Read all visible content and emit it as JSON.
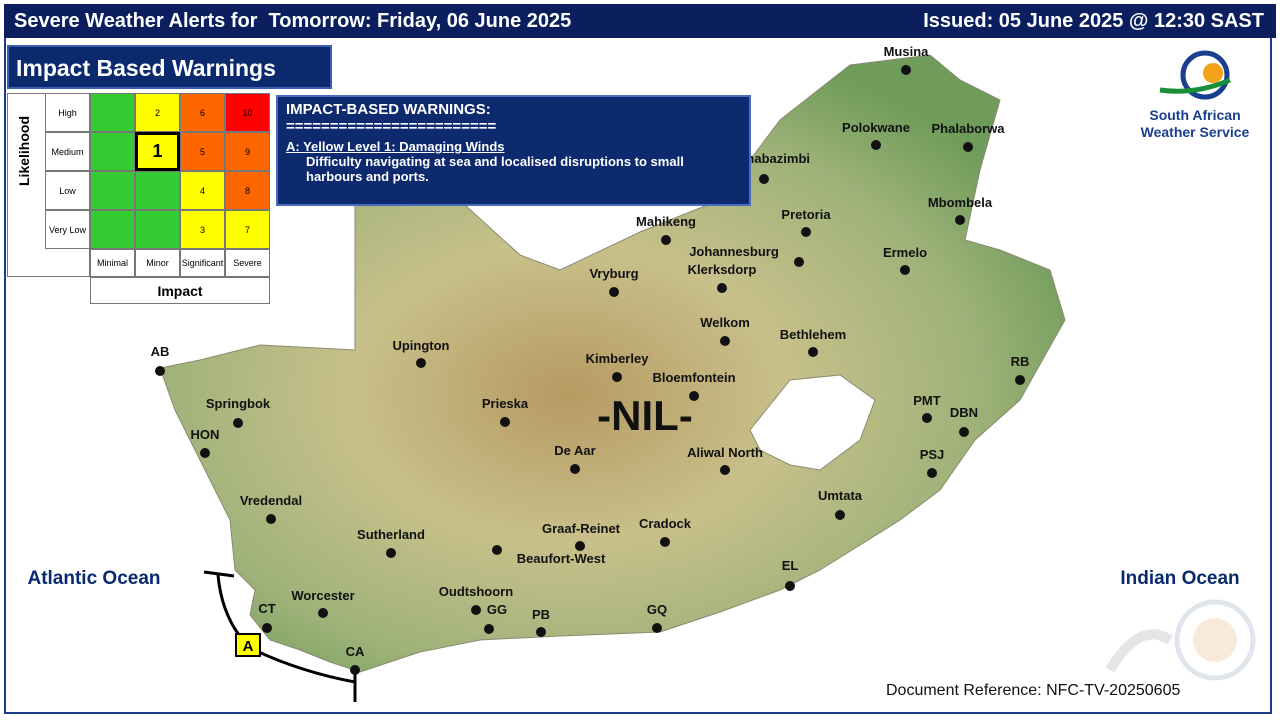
{
  "header": {
    "title": "Severe Weather Alerts for  Tomorrow: Friday, 06 June 2025",
    "issued": "Issued: 05 June 2025 @ 12:30 SAST"
  },
  "section_title": "Impact Based Warnings",
  "matrix": {
    "y_title": "Likelihood",
    "x_title": "Impact",
    "rows": [
      "High",
      "Medium",
      "Low",
      "Very Low"
    ],
    "columns": [
      "Minimal",
      "Minor",
      "Significant",
      "Severe"
    ],
    "cells": [
      [
        null,
        2,
        6,
        10
      ],
      [
        null,
        1,
        5,
        9
      ],
      [
        null,
        null,
        4,
        8
      ],
      [
        null,
        null,
        3,
        7
      ]
    ]
  },
  "warnings": {
    "heading": "IMPACT-BASED WARNINGS:",
    "separator": "========================",
    "items": [
      {
        "label": "A: Yellow Level 1: Damaging Winds",
        "text": "Difficulty navigating at sea and localised disruptions  to small harbours and ports."
      }
    ]
  },
  "map": {
    "status": "-NIL-",
    "oceans": [
      "Atlantic Ocean",
      "Indian Ocean"
    ],
    "marker": "A",
    "cities": [
      "Musina",
      "Polokwane",
      "Phalaborwa",
      "Thabazimbi",
      "Mbombela",
      "Pretoria",
      "Mahikeng",
      "Johannesburg",
      "Ermelo",
      "Vryburg",
      "Klerksdorp",
      "Welkom",
      "Bethlehem",
      "Upington",
      "Kimberley",
      "Bloemfontein",
      "AB",
      "RB",
      "Springbok",
      "Prieska",
      "PMT",
      "DBN",
      "HON",
      "De Aar",
      "Aliwal North",
      "PSJ",
      "Umtata",
      "Vredendal",
      "Graaf-Reinet",
      "Cradock",
      "Sutherland",
      "Beaufort-West",
      "EL",
      "Worcester",
      "Oudtshoorn",
      "GG",
      "PB",
      "GQ",
      "CT",
      "CA"
    ]
  },
  "logo": {
    "line1": "South African",
    "line2": "Weather Service"
  },
  "document_reference": "Document Reference: NFC-TV-20250605"
}
